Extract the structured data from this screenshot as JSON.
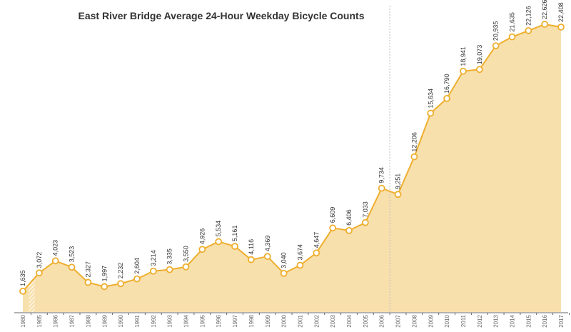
{
  "chart_data": {
    "type": "area",
    "title": "East River Bridge Average 24-Hour Weekday Bicycle Counts",
    "xlabel": "",
    "ylabel": "",
    "ylim": [
      0,
      23000
    ],
    "grid": false,
    "legend": "none",
    "colors": {
      "line": "#eeae2e",
      "fill": "#f8e0ad",
      "text": "#333333"
    },
    "categories": [
      "1980",
      "1985",
      "1986",
      "1987",
      "1988",
      "1989",
      "1990",
      "1991",
      "1992",
      "1993",
      "1994",
      "1995",
      "1996",
      "1997",
      "1998",
      "1999",
      "2000",
      "2001",
      "2002",
      "2003",
      "2004",
      "2005",
      "2006",
      "2007",
      "2008",
      "2009",
      "2010",
      "2011",
      "2012",
      "2013",
      "2014",
      "2015",
      "2016",
      "2017"
    ],
    "values": [
      1635,
      3072,
      4023,
      3523,
      2327,
      1997,
      2232,
      2604,
      3214,
      3335,
      3550,
      4926,
      5534,
      5161,
      4116,
      4369,
      3040,
      3674,
      4647,
      6609,
      6406,
      7033,
      9734,
      9251,
      12206,
      15634,
      16790,
      18941,
      19073,
      20935,
      21635,
      22126,
      22626,
      22408
    ],
    "data_labels": [
      "1,635",
      "3,072",
      "4,023",
      "3,523",
      "2,327",
      "1,997",
      "2,232",
      "2,604",
      "3,214",
      "3,335",
      "3,550",
      "4,926",
      "5,534",
      "5,161",
      "4,116",
      "4,369",
      "3,040",
      "3,674",
      "4,647",
      "6,609",
      "6,406",
      "7,033",
      "9,734",
      "9,251",
      "12,206",
      "15,634",
      "16,790",
      "18,941",
      "19,073",
      "20,935",
      "21,635",
      "22,126",
      "22,626",
      "22,408"
    ],
    "annotations": {
      "dashed_vertical_line_between": [
        "2006",
        "2007"
      ],
      "hatched_gap_between": [
        "1980",
        "1985"
      ]
    }
  }
}
